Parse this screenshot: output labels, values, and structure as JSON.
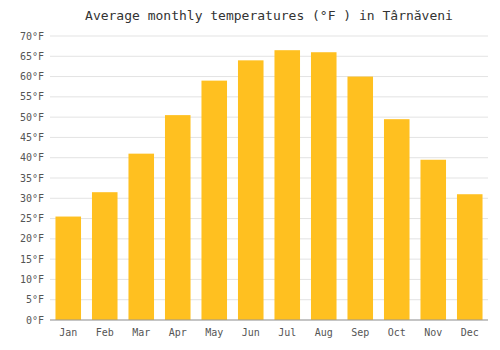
{
  "chart_data": {
    "type": "bar",
    "title": "Average monthly temperatures (°F ) in Târnăveni",
    "categories": [
      "Jan",
      "Feb",
      "Mar",
      "Apr",
      "May",
      "Jun",
      "Jul",
      "Aug",
      "Sep",
      "Oct",
      "Nov",
      "Dec"
    ],
    "values": [
      25.5,
      31.5,
      41.0,
      50.5,
      59.0,
      64.0,
      66.5,
      66.0,
      60.0,
      49.5,
      39.5,
      31.0
    ],
    "color": "#FFC020",
    "ylim": [
      0,
      70
    ],
    "yticks": [
      {
        "value": 0,
        "label": "0°F"
      },
      {
        "value": 5,
        "label": "5°F"
      },
      {
        "value": 10,
        "label": "10°F"
      },
      {
        "value": 15,
        "label": "15°F"
      },
      {
        "value": 20,
        "label": "20°F"
      },
      {
        "value": 25,
        "label": "25°F"
      },
      {
        "value": 30,
        "label": "30°F"
      },
      {
        "value": 35,
        "label": "35°F"
      },
      {
        "value": 40,
        "label": "40°F"
      },
      {
        "value": 45,
        "label": "45°F"
      },
      {
        "value": 50,
        "label": "50°F"
      },
      {
        "value": 55,
        "label": "55°F"
      },
      {
        "value": 60,
        "label": "60°F"
      },
      {
        "value": 65,
        "label": "65°F"
      },
      {
        "value": 70,
        "label": "70°F"
      }
    ],
    "grid": true
  }
}
